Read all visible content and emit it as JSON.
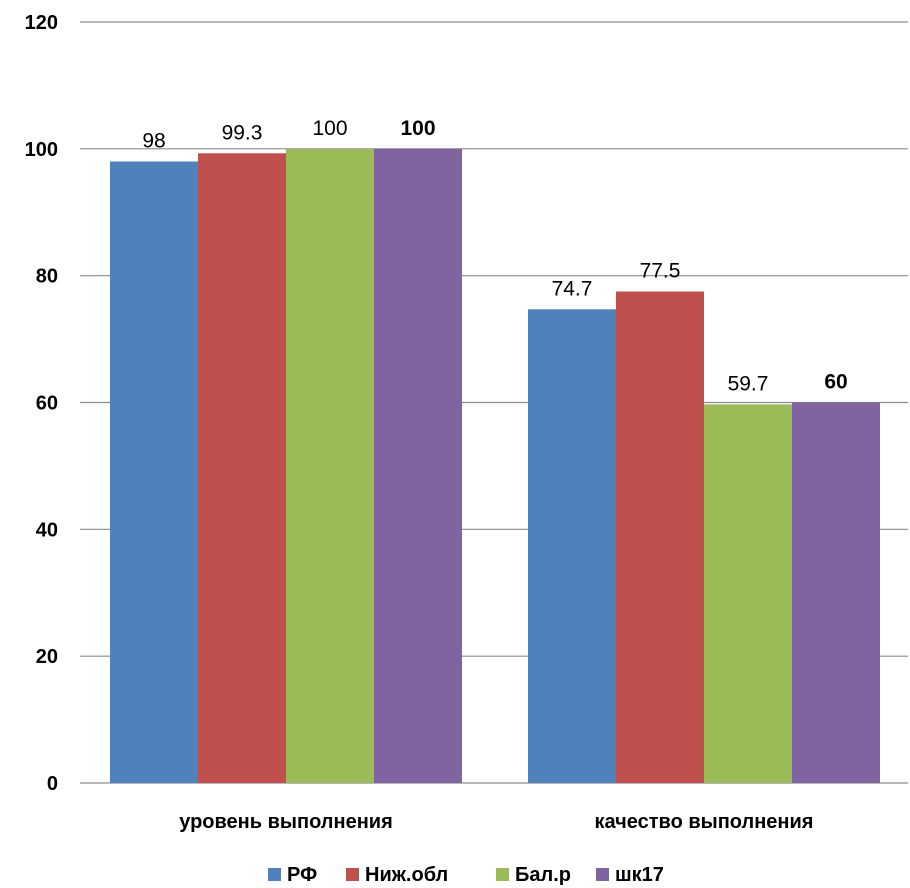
{
  "chart_data": {
    "type": "bar",
    "categories": [
      "уровень выполнения",
      "качество выполнения"
    ],
    "series": [
      {
        "name": "РФ",
        "color": "#4F81BD",
        "values": [
          98,
          74.7
        ],
        "labels": [
          "98",
          "74.7"
        ],
        "bold": false
      },
      {
        "name": "Ниж.обл",
        "color": "#C0504D",
        "values": [
          99.3,
          77.5
        ],
        "labels": [
          "99.3",
          "77.5"
        ],
        "bold": false
      },
      {
        "name": "Бал.р",
        "color": "#9BBB59",
        "values": [
          100,
          59.7
        ],
        "labels": [
          "100",
          "59.7"
        ],
        "bold": false
      },
      {
        "name": "шк17",
        "color": "#8064A2",
        "values": [
          100,
          60
        ],
        "labels": [
          "100",
          "60"
        ],
        "bold": true
      }
    ],
    "ylim": [
      0,
      120
    ],
    "yticks": [
      "0",
      "20",
      "40",
      "60",
      "80",
      "100",
      "120"
    ],
    "title": "",
    "xlabel": "",
    "ylabel": "",
    "grid": true,
    "legend": "bottom"
  }
}
